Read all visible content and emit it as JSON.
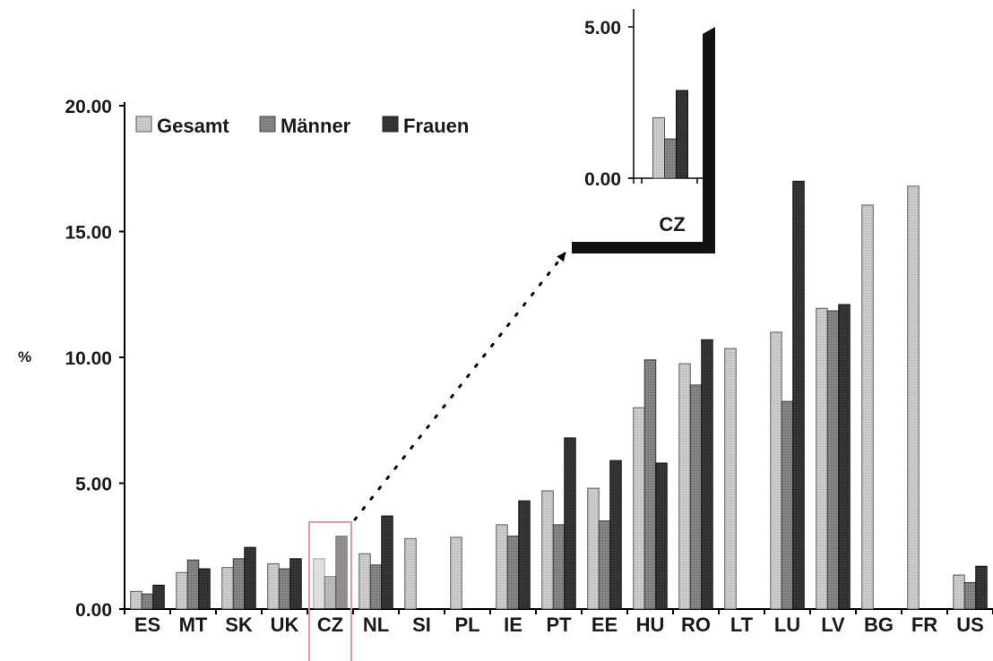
{
  "chart_data": {
    "type": "bar",
    "ylabel": "%",
    "ylim": [
      0,
      20
    ],
    "yticks": [
      "0.00",
      "5.00",
      "10.00",
      "15.00",
      "20.00"
    ],
    "grid": false,
    "legend_position": "top-left",
    "categories": [
      "ES",
      "MT",
      "SK",
      "UK",
      "CZ",
      "NL",
      "SI",
      "PL",
      "IE",
      "PT",
      "EE",
      "HU",
      "RO",
      "LT",
      "LU",
      "LV",
      "BG",
      "FR",
      "US"
    ],
    "highlight_category": "CZ",
    "series": [
      {
        "name": "Gesamt",
        "color": "#c8c8c8",
        "values": [
          0.7,
          1.45,
          1.65,
          1.8,
          2.0,
          2.2,
          2.8,
          2.85,
          3.35,
          4.7,
          4.8,
          8.0,
          9.75,
          10.35,
          11.0,
          11.95,
          16.05,
          16.8,
          1.35
        ]
      },
      {
        "name": "Männer",
        "color": "#808080",
        "values": [
          0.6,
          1.95,
          2.0,
          1.6,
          1.3,
          1.75,
          null,
          null,
          2.9,
          3.35,
          3.5,
          9.9,
          8.9,
          null,
          8.25,
          11.85,
          null,
          null,
          1.05
        ]
      },
      {
        "name": "Frauen",
        "color": "#333333",
        "values": [
          0.95,
          1.6,
          2.45,
          2.0,
          2.9,
          3.7,
          null,
          null,
          4.3,
          6.8,
          5.9,
          5.8,
          10.7,
          null,
          17.0,
          12.1,
          null,
          null,
          1.7
        ]
      }
    ],
    "inset": {
      "category": "CZ",
      "yticks": [
        "0.00",
        "5.00"
      ],
      "ylim": [
        0,
        5
      ]
    }
  }
}
